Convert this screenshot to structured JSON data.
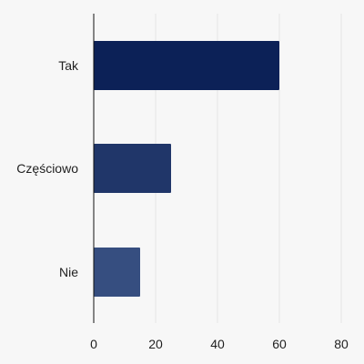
{
  "chart_data": {
    "type": "bar",
    "orientation": "horizontal",
    "categories": [
      "Tak",
      "Częściowo",
      "Nie"
    ],
    "values": [
      60,
      25,
      15
    ],
    "xlim": [
      0,
      80
    ],
    "xticks": [
      0,
      20,
      40,
      60,
      80
    ],
    "title": "",
    "xlabel": "",
    "ylabel": "",
    "grid": "vertical",
    "legend": "none",
    "colors": [
      "#0c2157",
      "#203669",
      "#364e80"
    ]
  }
}
